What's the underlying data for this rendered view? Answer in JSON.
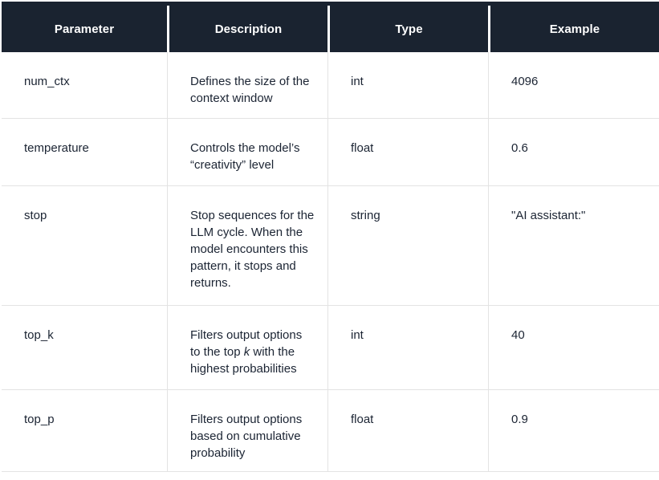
{
  "table": {
    "colors": {
      "header_bg": "#1a2330",
      "header_text": "#ffffff",
      "body_text": "#1b2433",
      "divider": "#e3e3e3",
      "page_bg": "#ffffff"
    },
    "columns": [
      {
        "label": "Parameter"
      },
      {
        "label": "Description"
      },
      {
        "label": "Type"
      },
      {
        "label": "Example"
      }
    ],
    "rows": [
      {
        "parameter": "num_ctx",
        "description": "Defines the size of the context window",
        "type": "int",
        "example": "4096"
      },
      {
        "parameter": "temperature",
        "description": "Controls the model’s “creativity” level",
        "type": "float",
        "example": "0.6"
      },
      {
        "parameter": "stop",
        "description": "Stop sequences for the LLM cycle. When the model encounters this pattern, it stops and returns.",
        "type": "string",
        "example": "\"AI assistant:\""
      },
      {
        "parameter": "top_k",
        "description": "Filters output options to the top *k* with the highest probabilities",
        "type": "int",
        "example": "40"
      },
      {
        "parameter": "top_p",
        "description": "Filters output options based on cumulative probability",
        "type": "float",
        "example": "0.9"
      }
    ]
  }
}
